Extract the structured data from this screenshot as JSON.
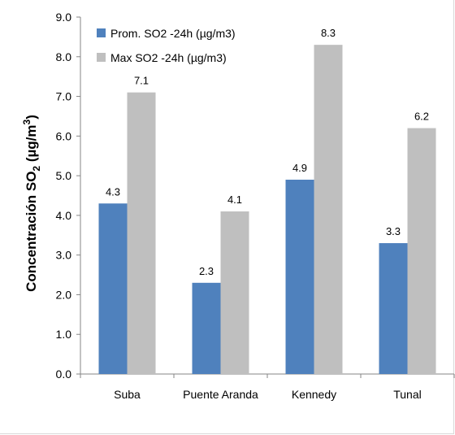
{
  "chart_data": {
    "type": "bar",
    "title": "",
    "xlabel": "",
    "ylabel": {
      "main": "Concentración SO",
      "subscript": "2",
      "unit_open": " (µg/m",
      "superscript": "3",
      "unit_close": ")"
    },
    "ylim": [
      0,
      9
    ],
    "yticks": [
      "0.0",
      "1.0",
      "2.0",
      "3.0",
      "4.0",
      "5.0",
      "6.0",
      "7.0",
      "8.0",
      "9.0"
    ],
    "grid": false,
    "legend_position": "top-left",
    "categories": [
      "Suba",
      "Puente Aranda",
      "Kennedy",
      "Tunal"
    ],
    "series": [
      {
        "name": "Prom. SO2 -24h  (µg/m3)",
        "color": "#4f81bd",
        "values": [
          4.3,
          2.3,
          4.9,
          3.3
        ],
        "labels": [
          "4.3",
          "2.3",
          "4.9",
          "3.3"
        ]
      },
      {
        "name": "Max SO2 -24h  (µg/m3)",
        "color": "#bfbfbf",
        "values": [
          7.1,
          4.1,
          8.3,
          6.2
        ],
        "labels": [
          "7.1",
          "4.1",
          "8.3",
          "6.2"
        ]
      }
    ]
  }
}
